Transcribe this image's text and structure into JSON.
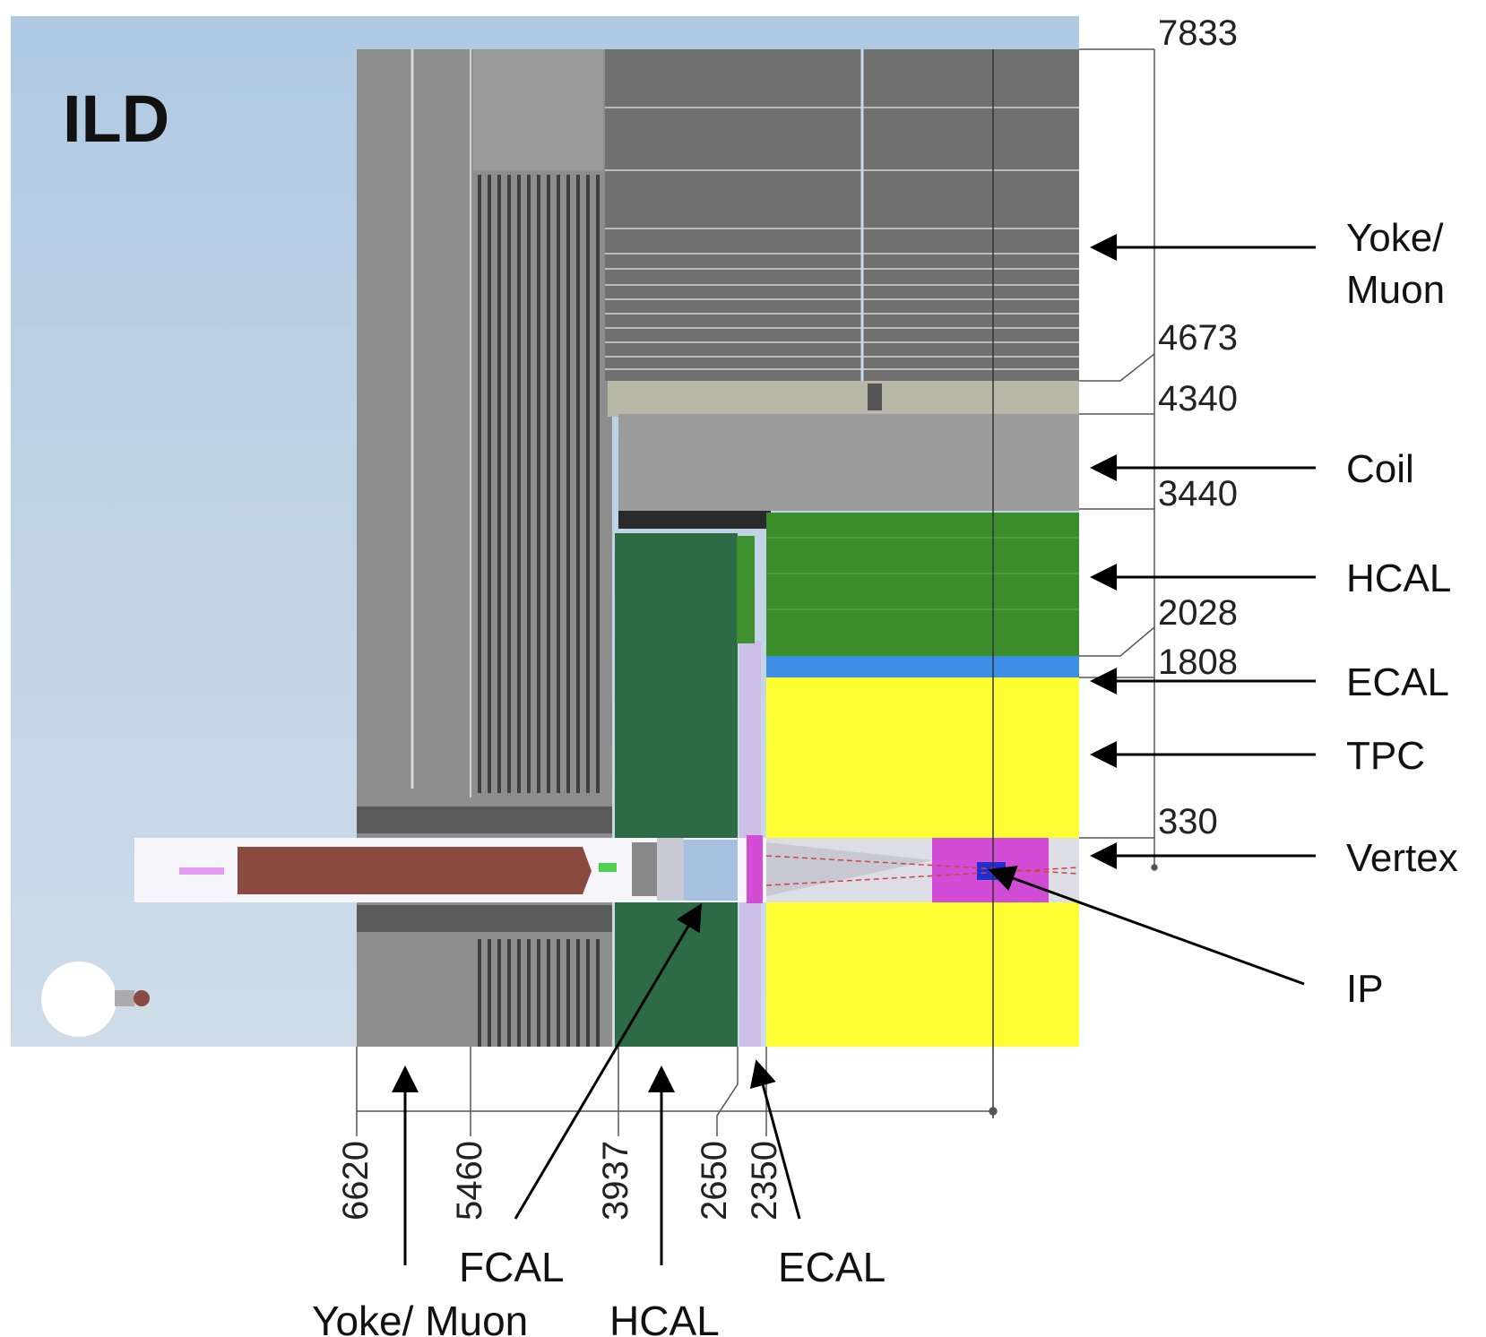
{
  "diagram": {
    "title": "ILD",
    "right_labels": {
      "yoke_line1": "Yoke/",
      "yoke_line2": "Muon",
      "coil": "Coil",
      "hcal": "HCAL",
      "ecal": "ECAL",
      "tpc": "TPC",
      "vertex": "Vertex",
      "ip": "IP"
    },
    "radial_dimensions": [
      "7833",
      "4673",
      "4340",
      "3440",
      "2028",
      "1808",
      "330"
    ],
    "axial_dimensions": [
      "6620",
      "5460",
      "3937",
      "2650",
      "2350"
    ],
    "bottom_labels": {
      "fcal": "FCAL",
      "ecal": "ECAL",
      "yoke_muon": "Yoke/ Muon",
      "hcal": "HCAL"
    },
    "colors": {
      "background": "#b9cfe0",
      "yoke": "#8e8e8e",
      "coil": "#a2a29a",
      "hcal_barrel": "#3f8f2f",
      "hcal_endcap": "#2f6e48",
      "ecal_barrel": "#3d8fe6",
      "ecal_endcap": "#c9b8e8",
      "tpc": "#ffff33",
      "vertex": "#d24cd6",
      "beampipe": "#d9d9e0",
      "forward_mass": "#8a4a40"
    }
  }
}
